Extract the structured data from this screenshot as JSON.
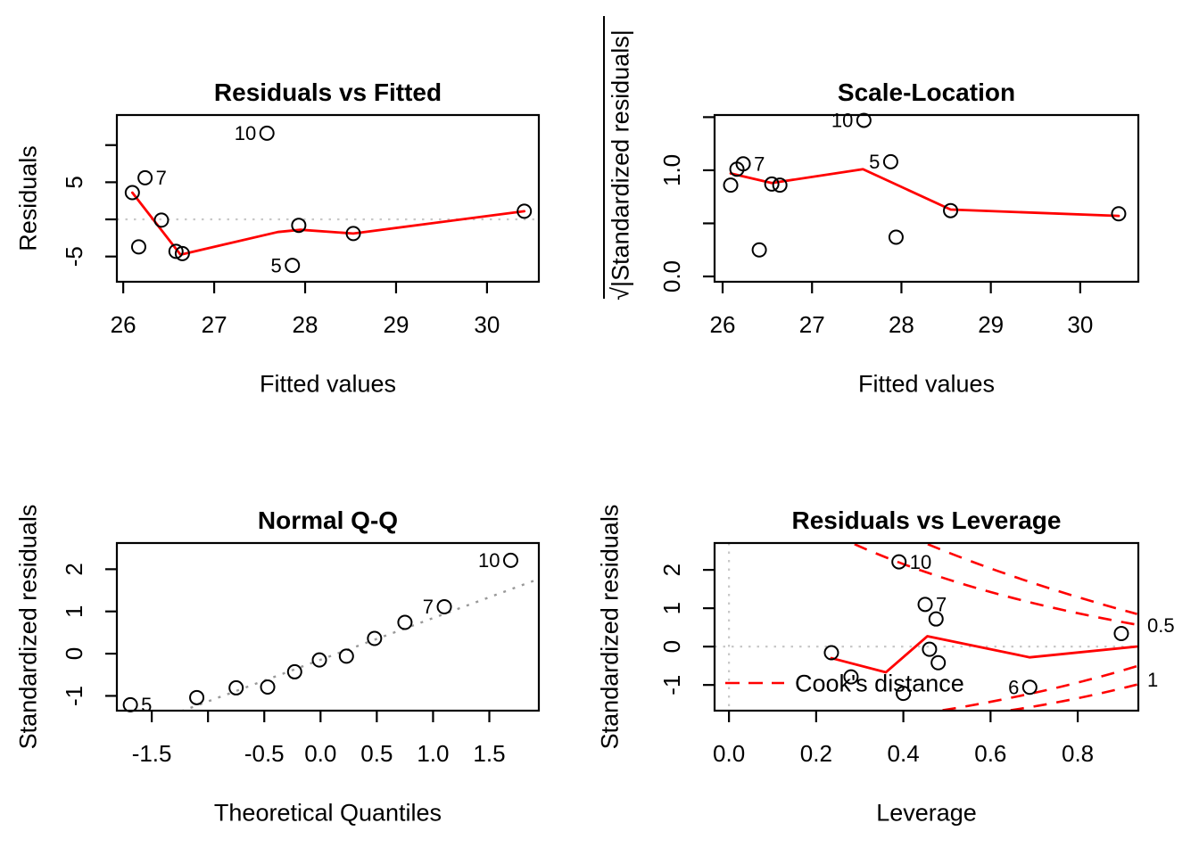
{
  "figure": {
    "background": "#ffffff",
    "accent_red": "#ff0000",
    "ref_line_gray": "#c8c8c8",
    "qq_line_gray": "#999999",
    "text_color": "#000000"
  },
  "chart_data": [
    {
      "id": "residuals-vs-fitted",
      "type": "scatter",
      "title": "Residuals vs Fitted",
      "xlabel": "Fitted values",
      "ylabel": "Residuals",
      "xlim": [
        25.93,
        30.57
      ],
      "ylim": [
        -8.4,
        14.05
      ],
      "x_ticks": {
        "values": [
          26,
          27,
          28,
          29,
          30
        ],
        "labels": [
          "26",
          "27",
          "28",
          "29",
          "30"
        ]
      },
      "y_ticks": {
        "values": [
          10,
          5,
          0,
          -5
        ],
        "labels": [
          "",
          "5",
          "",
          "-5"
        ]
      },
      "ref_lines": [
        {
          "type": "h",
          "at": 0
        }
      ],
      "points": [
        [
          26.1,
          3.6
        ],
        [
          26.17,
          -3.7
        ],
        [
          26.24,
          5.6
        ],
        [
          26.42,
          -0.1
        ],
        [
          26.58,
          -4.3
        ],
        [
          26.65,
          -4.6
        ],
        [
          27.58,
          11.6
        ],
        [
          27.86,
          -6.2
        ],
        [
          27.93,
          -0.8
        ],
        [
          28.53,
          -1.9
        ],
        [
          30.41,
          1.1
        ]
      ],
      "point_labels": [
        {
          "text": "10",
          "x": 27.58,
          "y": 11.6,
          "side": "left"
        },
        {
          "text": "7",
          "x": 26.24,
          "y": 5.6,
          "side": "right"
        },
        {
          "text": "5",
          "x": 27.86,
          "y": -6.2,
          "side": "left"
        }
      ],
      "smoother": [
        [
          26.1,
          3.6
        ],
        [
          26.63,
          -4.75
        ],
        [
          27.7,
          -1.7
        ],
        [
          27.95,
          -1.4
        ],
        [
          28.53,
          -1.9
        ],
        [
          30.41,
          1.1
        ]
      ]
    },
    {
      "id": "scale-location",
      "type": "scatter",
      "title": "Scale-Location",
      "xlabel": "Fitted values",
      "ylabel": "√|Standardized residuals|",
      "xlim": [
        25.91,
        30.65
      ],
      "ylim": [
        -0.05,
        1.52
      ],
      "x_ticks": {
        "values": [
          26,
          27,
          28,
          29,
          30
        ],
        "labels": [
          "26",
          "27",
          "28",
          "29",
          "30"
        ]
      },
      "y_ticks": {
        "values": [
          1.5,
          1.0,
          0.5,
          0.0
        ],
        "labels": [
          "",
          "1.0",
          "",
          "0.0"
        ]
      },
      "ref_lines": [],
      "points": [
        [
          26.09,
          0.86
        ],
        [
          26.16,
          1.01
        ],
        [
          26.23,
          1.06
        ],
        [
          26.41,
          0.25
        ],
        [
          26.55,
          0.87
        ],
        [
          26.64,
          0.86
        ],
        [
          27.58,
          1.47
        ],
        [
          27.88,
          1.08
        ],
        [
          27.94,
          0.37
        ],
        [
          28.55,
          0.62
        ],
        [
          30.43,
          0.59
        ]
      ],
      "point_labels": [
        {
          "text": "10",
          "x": 27.58,
          "y": 1.47,
          "side": "left"
        },
        {
          "text": "7",
          "x": 26.23,
          "y": 1.06,
          "side": "right"
        },
        {
          "text": "5",
          "x": 27.88,
          "y": 1.08,
          "side": "left"
        }
      ],
      "smoother": [
        [
          26.09,
          0.97
        ],
        [
          26.55,
          0.88
        ],
        [
          27.57,
          1.01
        ],
        [
          28.55,
          0.63
        ],
        [
          30.43,
          0.57
        ]
      ]
    },
    {
      "id": "normal-qq",
      "type": "scatter",
      "title": "Normal Q-Q",
      "xlabel": "Theoretical Quantiles",
      "ylabel": "Standardized residuals",
      "xlim": [
        -1.81,
        1.94
      ],
      "ylim": [
        -1.35,
        2.62
      ],
      "x_ticks": {
        "values": [
          -1.5,
          -1.0,
          -0.5,
          0.0,
          0.5,
          1.0,
          1.5
        ],
        "labels": [
          "-1.5",
          "",
          "-0.5",
          "0.0",
          "0.5",
          "1.0",
          "1.5"
        ]
      },
      "y_ticks": {
        "values": [
          2,
          1,
          0,
          -1
        ],
        "labels": [
          "2",
          "1",
          "0",
          "-1"
        ]
      },
      "ref_lines": [],
      "qq_line": {
        "from": [
          -1.81,
          -1.93
        ],
        "to": [
          1.94,
          1.77
        ]
      },
      "points": [
        [
          -1.69,
          -1.21
        ],
        [
          -1.1,
          -1.04
        ],
        [
          -0.75,
          -0.81
        ],
        [
          -0.47,
          -0.79
        ],
        [
          -0.23,
          -0.43
        ],
        [
          -0.01,
          -0.15
        ],
        [
          0.23,
          -0.06
        ],
        [
          0.48,
          0.36
        ],
        [
          0.75,
          0.74
        ],
        [
          1.1,
          1.11
        ],
        [
          1.69,
          2.21
        ]
      ],
      "point_labels": [
        {
          "text": "5",
          "x": -1.69,
          "y": -1.21,
          "side": "right"
        },
        {
          "text": "7",
          "x": 1.1,
          "y": 1.11,
          "side": "left"
        },
        {
          "text": "10",
          "x": 1.69,
          "y": 2.21,
          "side": "left"
        }
      ]
    },
    {
      "id": "residuals-vs-leverage",
      "type": "scatter",
      "title": "Residuals vs Leverage",
      "xlabel": "Leverage",
      "ylabel": "Standardized residuals",
      "xlim": [
        -0.033,
        0.939
      ],
      "ylim": [
        -1.67,
        2.7
      ],
      "x_ticks": {
        "values": [
          0.0,
          0.2,
          0.4,
          0.6,
          0.8
        ],
        "labels": [
          "0.0",
          "0.2",
          "0.4",
          "0.6",
          "0.8"
        ]
      },
      "y_ticks": {
        "values": [
          2,
          1,
          0,
          -1
        ],
        "labels": [
          "2",
          "1",
          "0",
          "-1"
        ]
      },
      "ref_lines": [
        {
          "type": "h",
          "at": 0
        },
        {
          "type": "v",
          "at": 0
        }
      ],
      "points": [
        [
          0.235,
          -0.16
        ],
        [
          0.28,
          -0.79
        ],
        [
          0.39,
          2.21
        ],
        [
          0.4,
          -1.22
        ],
        [
          0.45,
          1.1
        ],
        [
          0.46,
          -0.07
        ],
        [
          0.475,
          0.72
        ],
        [
          0.48,
          -0.42
        ],
        [
          0.69,
          -1.06
        ],
        [
          0.9,
          0.34
        ]
      ],
      "point_labels": [
        {
          "text": "10",
          "x": 0.39,
          "y": 2.21,
          "side": "right"
        },
        {
          "text": "7",
          "x": 0.45,
          "y": 1.1,
          "side": "right"
        },
        {
          "text": "6",
          "x": 0.69,
          "y": -1.06,
          "side": "left"
        }
      ],
      "smoother": [
        [
          0.235,
          -0.3
        ],
        [
          0.36,
          -0.67
        ],
        [
          0.455,
          0.27
        ],
        [
          0.69,
          -0.28
        ],
        [
          0.935,
          0.0
        ]
      ],
      "cooks_contours": {
        "curves": [
          {
            "level": "0.5",
            "points": [
              [
                0.288,
                2.67
              ],
              [
                0.579,
                1.49
              ],
              [
                0.936,
                0.57
              ]
            ]
          },
          {
            "level": "1",
            "points": [
              [
                0.456,
                2.67
              ],
              [
                0.681,
                1.72
              ],
              [
                0.936,
                0.85
              ]
            ]
          },
          {
            "level": "0.5",
            "points": [
              [
                0.49,
                -1.66
              ],
              [
                0.722,
                -1.15
              ],
              [
                0.936,
                -0.51
              ]
            ]
          },
          {
            "level": "1",
            "points": [
              [
                0.646,
                -1.66
              ],
              [
                0.794,
                -1.36
              ],
              [
                0.936,
                -0.99
              ]
            ]
          }
        ],
        "level_labels": [
          {
            "text": "0.5",
            "at_r": 0.55
          },
          {
            "text": "1",
            "at_r": -0.86
          }
        ]
      },
      "legend": {
        "text": "Cook's distance"
      }
    }
  ]
}
